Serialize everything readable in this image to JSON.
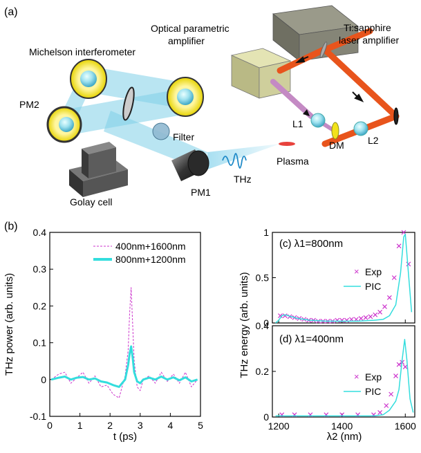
{
  "panels": {
    "a": "(a)",
    "b": "(b)"
  },
  "setup": {
    "michelson": "Michelson interferometer",
    "opa": [
      "Optical parametric",
      "amplifier"
    ],
    "ti": [
      "Ti:sapphire",
      "laser amplifier"
    ],
    "pm1": "PM1",
    "pm2": "PM2",
    "filter": "Filter",
    "golay": "Golay cell",
    "thz": "THz",
    "plasma": "Plasma",
    "l1": "L1",
    "l2": "L2",
    "dm": "DM"
  },
  "colors": {
    "magenta": "#cc33cc",
    "cyan": "#33dddd",
    "laser_orange": "#e8541c",
    "opa_purple": "#c48ac4",
    "beam_blue": "#7fcfe8",
    "mirror_yellow": "#f2e21a",
    "opa_box": "#d6d69a"
  },
  "chart_data": [
    {
      "id": "b",
      "type": "line",
      "xlabel": "t (ps)",
      "ylabel": "THz power (arb. units)",
      "xlim": [
        0,
        5
      ],
      "ylim": [
        -0.1,
        0.4
      ],
      "xticks": [
        "0",
        "1",
        "2",
        "3",
        "4",
        "5"
      ],
      "yticks": [
        "-0.1",
        "0",
        "0.1",
        "0.2",
        "0.3",
        "0.4"
      ],
      "legend_position": "top-right",
      "series": [
        {
          "name": "400nm+1600nm",
          "style": "dashed",
          "color": "#cc33cc",
          "x": [
            0.05,
            0.3,
            0.5,
            0.7,
            0.9,
            1.1,
            1.3,
            1.5,
            1.7,
            1.9,
            2.1,
            2.3,
            2.4,
            2.5,
            2.6,
            2.65,
            2.7,
            2.75,
            2.8,
            2.9,
            3.0,
            3.1,
            3.3,
            3.5,
            3.7,
            3.9,
            4.1,
            4.3,
            4.5,
            4.7,
            4.9
          ],
          "y": [
            0.0,
            0.015,
            0.02,
            -0.01,
            0.005,
            0.02,
            -0.01,
            0.01,
            -0.02,
            -0.015,
            -0.04,
            -0.05,
            -0.02,
            0.01,
            0.08,
            0.18,
            0.25,
            0.15,
            0.05,
            -0.02,
            -0.03,
            0.0,
            0.01,
            -0.01,
            0.02,
            -0.005,
            0.015,
            -0.01,
            0.02,
            -0.02,
            0.0
          ]
        },
        {
          "name": "800nm+1200nm",
          "style": "solid",
          "color": "#33dddd",
          "x": [
            0.05,
            0.3,
            0.5,
            0.7,
            0.9,
            1.1,
            1.3,
            1.5,
            1.7,
            1.9,
            2.1,
            2.3,
            2.4,
            2.5,
            2.6,
            2.65,
            2.7,
            2.75,
            2.8,
            2.9,
            3.0,
            3.1,
            3.3,
            3.5,
            3.7,
            3.9,
            4.1,
            4.3,
            4.5,
            4.7,
            4.9
          ],
          "y": [
            0.0,
            0.005,
            0.008,
            0.0,
            0.005,
            0.007,
            0.0,
            0.003,
            -0.005,
            -0.008,
            -0.015,
            -0.02,
            -0.01,
            0.0,
            0.04,
            0.07,
            0.09,
            0.06,
            0.02,
            -0.005,
            -0.01,
            0.0,
            0.005,
            0.0,
            0.008,
            0.0,
            0.006,
            -0.002,
            0.006,
            -0.005,
            0.0
          ]
        }
      ]
    },
    {
      "id": "c",
      "type": "scatter",
      "label": "(c) λ1=800nm",
      "ylabel": "THz energy (arb. units)",
      "xlim": [
        1180,
        1630
      ],
      "ylim": [
        0,
        1
      ],
      "yticks": [
        "0",
        "0.5",
        "1"
      ],
      "legend_position": "right",
      "series": [
        {
          "name": "Exp",
          "marker": "x",
          "color": "#cc33cc",
          "x": [
            1205,
            1220,
            1235,
            1250,
            1265,
            1280,
            1295,
            1310,
            1325,
            1340,
            1355,
            1370,
            1385,
            1400,
            1415,
            1430,
            1445,
            1460,
            1475,
            1490,
            1505,
            1520,
            1535,
            1550,
            1565,
            1580,
            1595,
            1610
          ],
          "y": [
            0.08,
            0.08,
            0.07,
            0.06,
            0.05,
            0.04,
            0.03,
            0.03,
            0.02,
            0.02,
            0.02,
            0.02,
            0.03,
            0.03,
            0.03,
            0.04,
            0.04,
            0.05,
            0.06,
            0.07,
            0.09,
            0.12,
            0.18,
            0.28,
            0.5,
            0.85,
            1.0,
            0.65
          ]
        },
        {
          "name": "PIC",
          "style": "solid",
          "color": "#33dddd",
          "x": [
            1190,
            1200,
            1210,
            1220,
            1240,
            1260,
            1280,
            1300,
            1350,
            1400,
            1450,
            1500,
            1530,
            1550,
            1570,
            1585,
            1595,
            1600,
            1610,
            1620
          ],
          "y": [
            0.0,
            0.03,
            0.08,
            0.09,
            0.07,
            0.05,
            0.04,
            0.03,
            0.02,
            0.02,
            0.02,
            0.03,
            0.04,
            0.08,
            0.2,
            0.55,
            0.95,
            0.98,
            0.55,
            0.12
          ]
        }
      ]
    },
    {
      "id": "d",
      "type": "scatter",
      "label": "(d) λ1=400nm",
      "xlabel": "λ2 (nm)",
      "xlim": [
        1180,
        1630
      ],
      "ylim": [
        0,
        0.4
      ],
      "xticks": [
        "1200",
        "1400",
        "1600"
      ],
      "yticks": [
        "0",
        "0.2",
        "0.4"
      ],
      "legend_position": "right",
      "series": [
        {
          "name": "Exp",
          "marker": "x",
          "color": "#cc33cc",
          "x": [
            1210,
            1250,
            1300,
            1350,
            1400,
            1450,
            1500,
            1520,
            1540,
            1555,
            1570,
            1580,
            1590,
            1600
          ],
          "y": [
            0.01,
            0.01,
            0.01,
            0.01,
            0.01,
            0.01,
            0.01,
            0.02,
            0.05,
            0.1,
            0.18,
            0.23,
            0.24,
            0.22
          ]
        },
        {
          "name": "PIC",
          "style": "solid",
          "color": "#33dddd",
          "x": [
            1190,
            1300,
            1400,
            1500,
            1530,
            1550,
            1570,
            1580,
            1590,
            1598,
            1605,
            1615,
            1625
          ],
          "y": [
            0.005,
            0.005,
            0.005,
            0.005,
            0.01,
            0.03,
            0.07,
            0.12,
            0.25,
            0.34,
            0.25,
            0.08,
            0.02
          ]
        }
      ]
    }
  ]
}
